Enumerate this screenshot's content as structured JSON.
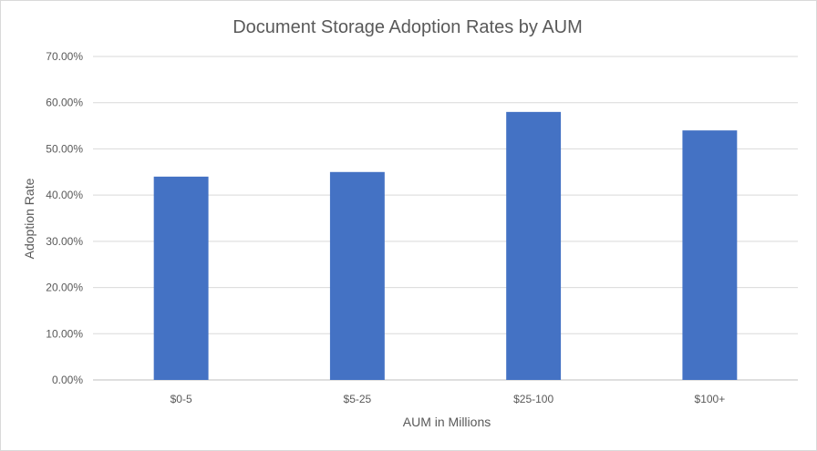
{
  "chart_data": {
    "type": "bar",
    "title": "Document Storage Adoption Rates by AUM",
    "xlabel": "AUM in Millions",
    "ylabel": "Adoption Rate",
    "categories": [
      "$0-5",
      "$5-25",
      "$25-100",
      "$100+"
    ],
    "values": [
      0.44,
      0.45,
      0.58,
      0.54
    ],
    "ylim": [
      0,
      0.7
    ],
    "yticks": [
      0,
      0.1,
      0.2,
      0.3,
      0.4,
      0.5,
      0.6,
      0.7
    ],
    "ytick_labels": [
      "0.00%",
      "10.00%",
      "20.00%",
      "30.00%",
      "40.00%",
      "50.00%",
      "60.00%",
      "70.00%"
    ],
    "grid": true,
    "legend": "none",
    "bar_color": "#4472C4"
  }
}
